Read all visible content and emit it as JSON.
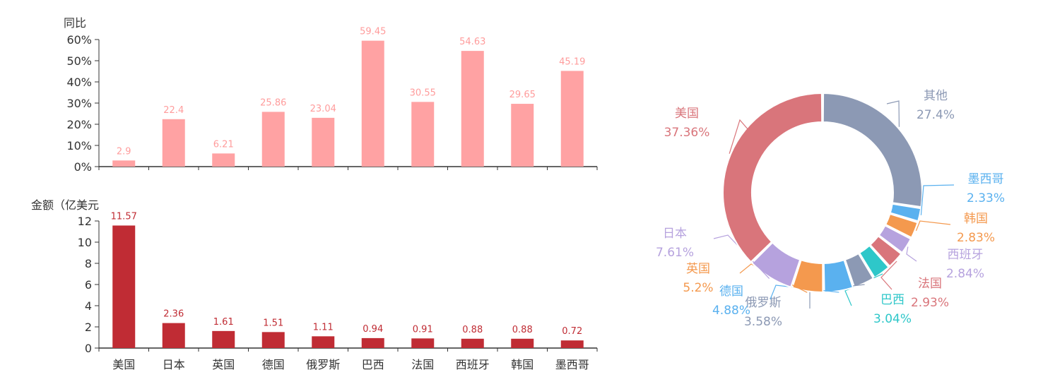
{
  "chart_data": [
    {
      "type": "bar",
      "ylabel": "同比",
      "categories": [
        "美国",
        "日本",
        "英国",
        "德国",
        "俄罗斯",
        "巴西",
        "法国",
        "西班牙",
        "韩国",
        "墨西哥"
      ],
      "values": [
        2.9,
        22.4,
        6.21,
        25.86,
        23.04,
        59.45,
        30.55,
        54.63,
        29.65,
        45.19
      ],
      "value_labels": [
        "2.9",
        "22.4",
        "6.21",
        "25.86",
        "23.04",
        "59.45",
        "30.55",
        "54.63",
        "29.65",
        "45.19"
      ],
      "yticks": [
        "0%",
        "10%",
        "20%",
        "30%",
        "40%",
        "50%",
        "60%"
      ],
      "ylim": [
        0,
        60
      ],
      "color": "#ffa2a3",
      "label_color": "#ff9c9c"
    },
    {
      "type": "bar",
      "ylabel": "金额（亿美元",
      "categories": [
        "美国",
        "日本",
        "英国",
        "德国",
        "俄罗斯",
        "巴西",
        "法国",
        "西班牙",
        "韩国",
        "墨西哥"
      ],
      "values": [
        11.57,
        2.36,
        1.61,
        1.51,
        1.11,
        0.94,
        0.91,
        0.88,
        0.88,
        0.72
      ],
      "value_labels": [
        "11.57",
        "2.36",
        "1.61",
        "1.51",
        "1.11",
        "0.94",
        "0.91",
        "0.88",
        "0.88",
        "0.72"
      ],
      "yticks": [
        "0",
        "2",
        "4",
        "6",
        "8",
        "10",
        "12"
      ],
      "ylim": [
        0,
        12
      ],
      "color": "#c02c34",
      "label_color": "#c02c34"
    },
    {
      "type": "pie",
      "donut": true,
      "slices": [
        {
          "name": "美国",
          "value": 37.36,
          "label": "37.36%",
          "color": "#d9757b"
        },
        {
          "name": "其他",
          "value": 27.4,
          "label": "27.4%",
          "color": "#8c99b4"
        },
        {
          "name": "墨西哥",
          "value": 2.33,
          "label": "2.33%",
          "color": "#5ab1ef"
        },
        {
          "name": "韩国",
          "value": 2.83,
          "label": "2.83%",
          "color": "#f4994e"
        },
        {
          "name": "西班牙",
          "value": 2.84,
          "label": "2.84%",
          "color": "#b6a2de"
        },
        {
          "name": "法国",
          "value": 2.93,
          "label": "2.93%",
          "color": "#d9757b"
        },
        {
          "name": "巴西",
          "value": 3.04,
          "label": "3.04%",
          "color": "#2ec7c9"
        },
        {
          "name": "俄罗斯",
          "value": 3.58,
          "label": "3.58%",
          "color": "#8c99b4"
        },
        {
          "name": "德国",
          "value": 4.88,
          "label": "4.88%",
          "color": "#5ab1ef"
        },
        {
          "name": "英国",
          "value": 5.2,
          "label": "5.2%",
          "color": "#f4994e"
        },
        {
          "name": "日本",
          "value": 7.61,
          "label": "7.61%",
          "color": "#b6a2de"
        }
      ]
    }
  ]
}
